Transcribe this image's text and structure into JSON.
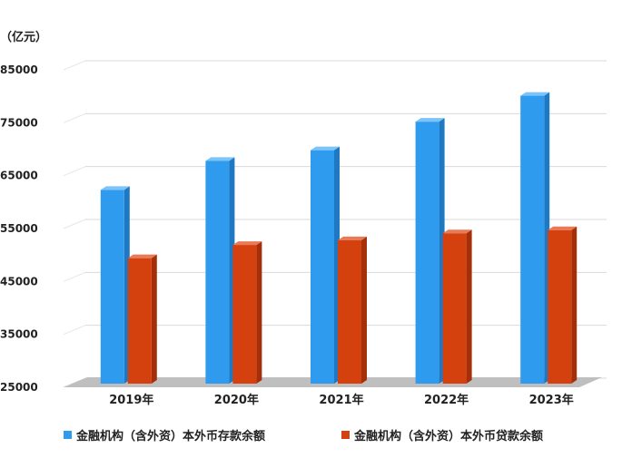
{
  "chart_data": {
    "type": "bar",
    "ylabel": "（亿元）",
    "categories": [
      "2019年",
      "2020年",
      "2021年",
      "2022年",
      "2023年"
    ],
    "ylim": [
      25000,
      85000
    ],
    "yticks": [
      25000,
      35000,
      45000,
      55000,
      65000,
      75000,
      85000
    ],
    "grid": true,
    "legend_position": "bottom",
    "series": [
      {
        "name": "金融机构（含外资）本外币存款余额",
        "color": "#2F9BEF",
        "values": [
          62300,
          67800,
          69800,
          75200,
          80100
        ]
      },
      {
        "name": "金融机构（含外资）本外币贷款余额",
        "color": "#D5400F",
        "values": [
          49400,
          51900,
          52800,
          54100,
          54700
        ]
      }
    ]
  }
}
